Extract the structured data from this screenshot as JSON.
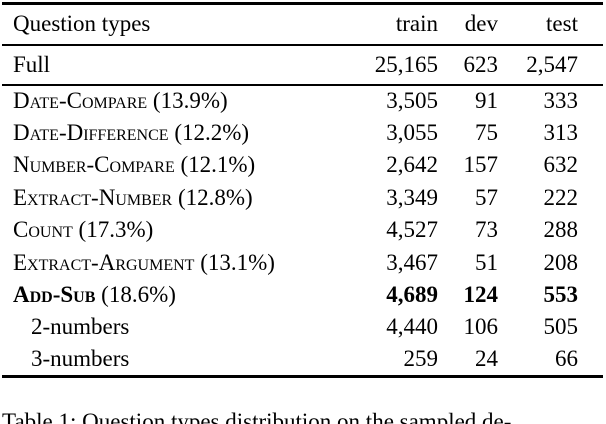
{
  "page": {
    "background_color": "#ffffff",
    "text_color": "#000000"
  },
  "table": {
    "header": {
      "label": "Question types",
      "train": "train",
      "dev": "dev",
      "test": "test"
    },
    "full_row": {
      "label": "Full",
      "train": "25,165",
      "dev": "623",
      "test": "2,547"
    },
    "rows": [
      {
        "label": "Date-Compare",
        "pct": "(13.9%)",
        "train": "3,505",
        "dev": "91",
        "test": "333",
        "smallcaps": true,
        "bold": false,
        "indent": false
      },
      {
        "label": "Date-Difference",
        "pct": "(12.2%)",
        "train": "3,055",
        "dev": "75",
        "test": "313",
        "smallcaps": true,
        "bold": false,
        "indent": false
      },
      {
        "label": "Number-Compare",
        "pct": "(12.1%)",
        "train": "2,642",
        "dev": "157",
        "test": "632",
        "smallcaps": true,
        "bold": false,
        "indent": false
      },
      {
        "label": "Extract-Number",
        "pct": "(12.8%)",
        "train": "3,349",
        "dev": "57",
        "test": "222",
        "smallcaps": true,
        "bold": false,
        "indent": false
      },
      {
        "label": "Count",
        "pct": "(17.3%)",
        "train": "4,527",
        "dev": "73",
        "test": "288",
        "smallcaps": true,
        "bold": false,
        "indent": false
      },
      {
        "label": "Extract-Argument",
        "pct": "(13.1%)",
        "train": "3,467",
        "dev": "51",
        "test": "208",
        "smallcaps": true,
        "bold": false,
        "indent": false
      },
      {
        "label": "Add-Sub",
        "pct": "(18.6%)",
        "train": "4,689",
        "dev": "124",
        "test": "553",
        "smallcaps": true,
        "bold": true,
        "indent": false
      },
      {
        "label": "2-numbers",
        "pct": "",
        "train": "4,440",
        "dev": "106",
        "test": "505",
        "smallcaps": false,
        "bold": false,
        "indent": true
      },
      {
        "label": "3-numbers",
        "pct": "",
        "train": "259",
        "dev": "24",
        "test": "66",
        "smallcaps": false,
        "bold": false,
        "indent": true
      }
    ]
  },
  "caption": {
    "text": "Table 1: Question types distribution on the sampled de-"
  }
}
